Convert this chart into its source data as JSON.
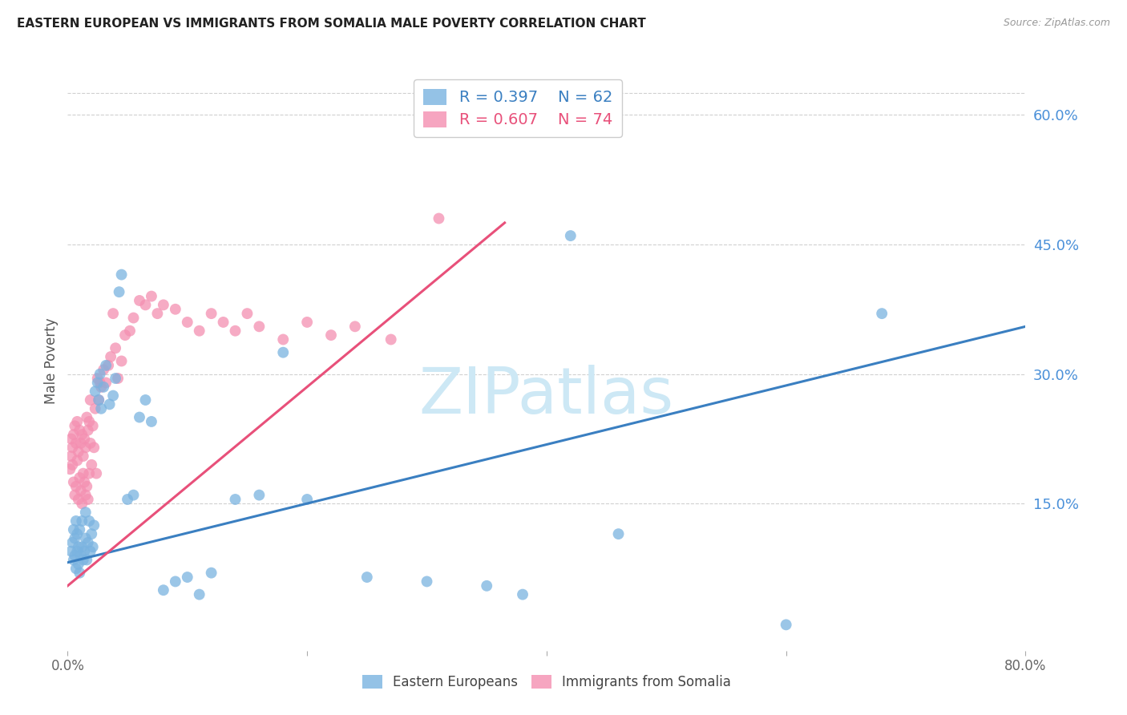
{
  "title": "EASTERN EUROPEAN VS IMMIGRANTS FROM SOMALIA MALE POVERTY CORRELATION CHART",
  "source": "Source: ZipAtlas.com",
  "ylabel": "Male Poverty",
  "right_ytick_labels": [
    "60.0%",
    "45.0%",
    "30.0%",
    "15.0%"
  ],
  "right_ytick_values": [
    0.6,
    0.45,
    0.3,
    0.15
  ],
  "xlim": [
    0.0,
    0.8
  ],
  "ylim": [
    -0.02,
    0.65
  ],
  "scatter_blue_color": "#7ab3e0",
  "scatter_pink_color": "#f48fb1",
  "trend_blue_color": "#3a7fc1",
  "trend_pink_color": "#e8507a",
  "watermark_text": "ZIPatlas",
  "watermark_color": "#cde8f5",
  "blue_trend_start_x": 0.0,
  "blue_trend_start_y": 0.082,
  "blue_trend_end_x": 0.8,
  "blue_trend_end_y": 0.355,
  "pink_trend_start_x": 0.0,
  "pink_trend_start_y": 0.055,
  "pink_trend_end_x": 0.365,
  "pink_trend_end_y": 0.475,
  "legend_bottom_labels": [
    "Eastern Europeans",
    "Immigrants from Somalia"
  ],
  "blue_scatter_x": [
    0.003,
    0.004,
    0.005,
    0.005,
    0.006,
    0.006,
    0.007,
    0.007,
    0.008,
    0.008,
    0.009,
    0.009,
    0.01,
    0.01,
    0.011,
    0.012,
    0.012,
    0.013,
    0.014,
    0.015,
    0.015,
    0.016,
    0.017,
    0.018,
    0.019,
    0.02,
    0.021,
    0.022,
    0.023,
    0.025,
    0.026,
    0.027,
    0.028,
    0.03,
    0.032,
    0.035,
    0.038,
    0.04,
    0.043,
    0.045,
    0.05,
    0.055,
    0.06,
    0.065,
    0.07,
    0.08,
    0.09,
    0.1,
    0.11,
    0.12,
    0.14,
    0.16,
    0.18,
    0.2,
    0.25,
    0.3,
    0.35,
    0.38,
    0.42,
    0.46,
    0.6,
    0.68
  ],
  "blue_scatter_y": [
    0.095,
    0.105,
    0.085,
    0.12,
    0.09,
    0.11,
    0.075,
    0.13,
    0.095,
    0.115,
    0.08,
    0.1,
    0.07,
    0.12,
    0.09,
    0.1,
    0.13,
    0.085,
    0.095,
    0.11,
    0.14,
    0.085,
    0.105,
    0.13,
    0.095,
    0.115,
    0.1,
    0.125,
    0.28,
    0.29,
    0.27,
    0.3,
    0.26,
    0.285,
    0.31,
    0.265,
    0.275,
    0.295,
    0.395,
    0.415,
    0.155,
    0.16,
    0.25,
    0.27,
    0.245,
    0.05,
    0.06,
    0.065,
    0.045,
    0.07,
    0.155,
    0.16,
    0.325,
    0.155,
    0.065,
    0.06,
    0.055,
    0.045,
    0.46,
    0.115,
    0.01,
    0.37
  ],
  "pink_scatter_x": [
    0.002,
    0.003,
    0.003,
    0.004,
    0.004,
    0.005,
    0.005,
    0.006,
    0.006,
    0.007,
    0.007,
    0.008,
    0.008,
    0.009,
    0.009,
    0.01,
    0.01,
    0.011,
    0.011,
    0.012,
    0.012,
    0.013,
    0.013,
    0.014,
    0.014,
    0.015,
    0.015,
    0.016,
    0.016,
    0.017,
    0.017,
    0.018,
    0.018,
    0.019,
    0.019,
    0.02,
    0.021,
    0.022,
    0.023,
    0.024,
    0.025,
    0.026,
    0.027,
    0.028,
    0.03,
    0.032,
    0.034,
    0.036,
    0.038,
    0.04,
    0.042,
    0.045,
    0.048,
    0.052,
    0.055,
    0.06,
    0.065,
    0.07,
    0.075,
    0.08,
    0.09,
    0.1,
    0.11,
    0.12,
    0.13,
    0.14,
    0.15,
    0.16,
    0.18,
    0.2,
    0.22,
    0.24,
    0.27,
    0.31
  ],
  "pink_scatter_y": [
    0.19,
    0.225,
    0.205,
    0.195,
    0.215,
    0.23,
    0.175,
    0.24,
    0.16,
    0.22,
    0.17,
    0.2,
    0.245,
    0.155,
    0.21,
    0.18,
    0.235,
    0.165,
    0.22,
    0.15,
    0.23,
    0.185,
    0.205,
    0.175,
    0.225,
    0.16,
    0.215,
    0.25,
    0.17,
    0.235,
    0.155,
    0.245,
    0.185,
    0.22,
    0.27,
    0.195,
    0.24,
    0.215,
    0.26,
    0.185,
    0.295,
    0.27,
    0.29,
    0.285,
    0.305,
    0.29,
    0.31,
    0.32,
    0.37,
    0.33,
    0.295,
    0.315,
    0.345,
    0.35,
    0.365,
    0.385,
    0.38,
    0.39,
    0.37,
    0.38,
    0.375,
    0.36,
    0.35,
    0.37,
    0.36,
    0.35,
    0.37,
    0.355,
    0.34,
    0.36,
    0.345,
    0.355,
    0.34,
    0.48
  ]
}
